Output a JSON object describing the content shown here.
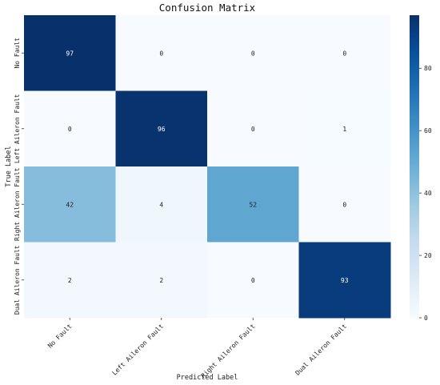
{
  "chart_data": {
    "type": "heatmap",
    "title": "Confusion Matrix",
    "xlabel": "Predicted Label",
    "ylabel": "True Label",
    "x_categories": [
      "No Fault",
      "Left Aileron Fault",
      "Right Aileron Fault",
      "Dual Aileron Fault"
    ],
    "y_categories": [
      "No Fault",
      "Left Aileron Fault",
      "Right Aileron Fault",
      "Dual Aileron Fault"
    ],
    "values": [
      [
        97,
        0,
        0,
        0
      ],
      [
        0,
        96,
        0,
        1
      ],
      [
        42,
        4,
        52,
        0
      ],
      [
        2,
        2,
        0,
        93
      ]
    ],
    "colormap": "Blues",
    "colorbar": {
      "min": 0,
      "max": 97,
      "ticks": [
        0,
        20,
        40,
        60,
        80
      ]
    }
  }
}
